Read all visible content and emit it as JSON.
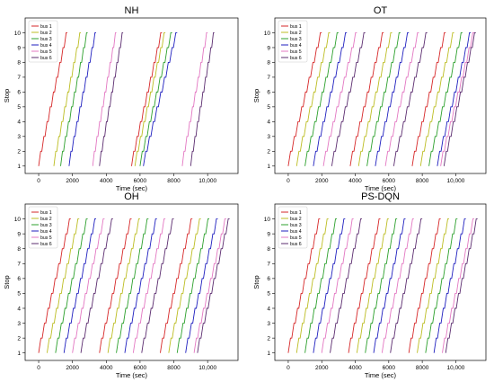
{
  "chart_data": [
    {
      "type": "line",
      "title": "NH",
      "xlabel": "Time (sec)",
      "ylabel": "Stop",
      "xlim": [
        -800,
        11800
      ],
      "ylim": [
        0.5,
        11.0
      ],
      "xticks": [
        0,
        2000,
        4000,
        6000,
        8000,
        10000
      ],
      "xtick_labels": [
        "0",
        "2000",
        "4000",
        "6000",
        "8000",
        "10,000"
      ],
      "yticks": [
        1,
        2,
        3,
        4,
        5,
        6,
        7,
        8,
        9,
        10
      ],
      "legend": "top-left",
      "bus_colors": [
        "#d62728",
        "#bcbd22",
        "#2ca02c",
        "#1f1fbf",
        "#e377c2",
        "#5b2c6f"
      ],
      "series": [
        {
          "name": "bus 1",
          "trips": [
            [
              0,
              1700
            ],
            [
              5500,
              7300
            ]
          ]
        },
        {
          "name": "bus 2",
          "trips": [
            [
              900,
              2500
            ],
            [
              5700,
              7500
            ]
          ]
        },
        {
          "name": "bus 3",
          "trips": [
            [
              1300,
              2900
            ],
            [
              6000,
              7900
            ]
          ]
        },
        {
          "name": "bus 4",
          "trips": [
            [
              1800,
              3400
            ],
            [
              6200,
              8200
            ]
          ]
        },
        {
          "name": "bus 5",
          "trips": [
            [
              3200,
              4600
            ],
            [
              8500,
              10000
            ]
          ]
        },
        {
          "name": "bus 6",
          "trips": [
            [
              3600,
              5000
            ],
            [
              9000,
              10400
            ]
          ]
        }
      ]
    },
    {
      "type": "line",
      "title": "OT",
      "xlabel": "Time (sec)",
      "ylabel": "Stop",
      "xlim": [
        -800,
        11800
      ],
      "ylim": [
        0.5,
        11.0
      ],
      "xticks": [
        0,
        2000,
        4000,
        6000,
        8000,
        10000
      ],
      "xtick_labels": [
        "0",
        "2000",
        "4000",
        "6000",
        "8000",
        "10,000"
      ],
      "yticks": [
        1,
        2,
        3,
        4,
        5,
        6,
        7,
        8,
        9,
        10
      ],
      "legend": "top-left",
      "bus_colors": [
        "#d62728",
        "#bcbd22",
        "#2ca02c",
        "#1f1fbf",
        "#e377c2",
        "#5b2c6f"
      ],
      "series": [
        {
          "name": "bus 1",
          "trips": [
            [
              0,
              2000
            ],
            [
              3700,
              5700
            ],
            [
              7400,
              9400
            ]
          ]
        },
        {
          "name": "bus 2",
          "trips": [
            [
              500,
              2500
            ],
            [
              4200,
              6200
            ],
            [
              7900,
              9900
            ]
          ]
        },
        {
          "name": "bus 3",
          "trips": [
            [
              1000,
              3000
            ],
            [
              4700,
              6700
            ],
            [
              8400,
              10400
            ]
          ]
        },
        {
          "name": "bus 4",
          "trips": [
            [
              1500,
              3500
            ],
            [
              5200,
              7200
            ],
            [
              8900,
              10900
            ]
          ]
        },
        {
          "name": "bus 5",
          "trips": [
            [
              2100,
              4100
            ],
            [
              5800,
              7800
            ],
            [
              9100,
              11100
            ]
          ]
        },
        {
          "name": "bus 6",
          "trips": [
            [
              2600,
              4600
            ],
            [
              6300,
              8300
            ],
            [
              9300,
              11200
            ]
          ]
        }
      ]
    },
    {
      "type": "line",
      "title": "OH",
      "xlabel": "Time (sec)",
      "ylabel": "Stop",
      "xlim": [
        -800,
        11800
      ],
      "ylim": [
        0.5,
        11.0
      ],
      "xticks": [
        0,
        2000,
        4000,
        6000,
        8000,
        10000
      ],
      "xtick_labels": [
        "0",
        "2000",
        "4000",
        "6000",
        "8000",
        "10,000"
      ],
      "yticks": [
        1,
        2,
        3,
        4,
        5,
        6,
        7,
        8,
        9,
        10
      ],
      "legend": "top-left",
      "bus_colors": [
        "#d62728",
        "#bcbd22",
        "#2ca02c",
        "#1f1fbf",
        "#e377c2",
        "#5b2c6f"
      ],
      "series": [
        {
          "name": "bus 1",
          "trips": [
            [
              0,
              1900
            ],
            [
              3600,
              5500
            ],
            [
              7200,
              9100
            ]
          ]
        },
        {
          "name": "bus 2",
          "trips": [
            [
              500,
              2400
            ],
            [
              4100,
              6000
            ],
            [
              7700,
              9600
            ]
          ]
        },
        {
          "name": "bus 3",
          "trips": [
            [
              1000,
              2900
            ],
            [
              4600,
              6500
            ],
            [
              8200,
              10100
            ]
          ]
        },
        {
          "name": "bus 4",
          "trips": [
            [
              1500,
              3400
            ],
            [
              5100,
              7000
            ],
            [
              8700,
              10600
            ]
          ]
        },
        {
          "name": "bus 5",
          "trips": [
            [
              2000,
              3900
            ],
            [
              5600,
              7500
            ],
            [
              9200,
              11100
            ]
          ]
        },
        {
          "name": "bus 6",
          "trips": [
            [
              2500,
              4400
            ],
            [
              6100,
              8000
            ],
            [
              9400,
              11300
            ]
          ]
        }
      ]
    },
    {
      "type": "line",
      "title": "PS-DQN",
      "xlabel": "Time (sec)",
      "ylabel": "Stop",
      "xlim": [
        -800,
        11800
      ],
      "ylim": [
        0.5,
        11.0
      ],
      "xticks": [
        0,
        2000,
        4000,
        6000,
        8000,
        10000
      ],
      "xtick_labels": [
        "0",
        "2000",
        "4000",
        "6000",
        "8000",
        "10,000"
      ],
      "yticks": [
        1,
        2,
        3,
        4,
        5,
        6,
        7,
        8,
        9,
        10
      ],
      "legend": "top-left",
      "bus_colors": [
        "#d62728",
        "#bcbd22",
        "#2ca02c",
        "#1f1fbf",
        "#e377c2",
        "#5b2c6f"
      ],
      "series": [
        {
          "name": "bus 1",
          "trips": [
            [
              0,
              1900
            ],
            [
              3600,
              5500
            ],
            [
              7200,
              9100
            ]
          ]
        },
        {
          "name": "bus 2",
          "trips": [
            [
              500,
              2400
            ],
            [
              4100,
              6000
            ],
            [
              7700,
              9600
            ]
          ]
        },
        {
          "name": "bus 3",
          "trips": [
            [
              1000,
              2900
            ],
            [
              4600,
              6500
            ],
            [
              8200,
              10100
            ]
          ]
        },
        {
          "name": "bus 4",
          "trips": [
            [
              1500,
              3400
            ],
            [
              5100,
              7000
            ],
            [
              8700,
              10600
            ]
          ]
        },
        {
          "name": "bus 5",
          "trips": [
            [
              2000,
              3900
            ],
            [
              5600,
              7500
            ],
            [
              9200,
              11100
            ]
          ]
        },
        {
          "name": "bus 6",
          "trips": [
            [
              2500,
              4400
            ],
            [
              6100,
              8000
            ],
            [
              9400,
              11300
            ]
          ]
        }
      ]
    }
  ]
}
